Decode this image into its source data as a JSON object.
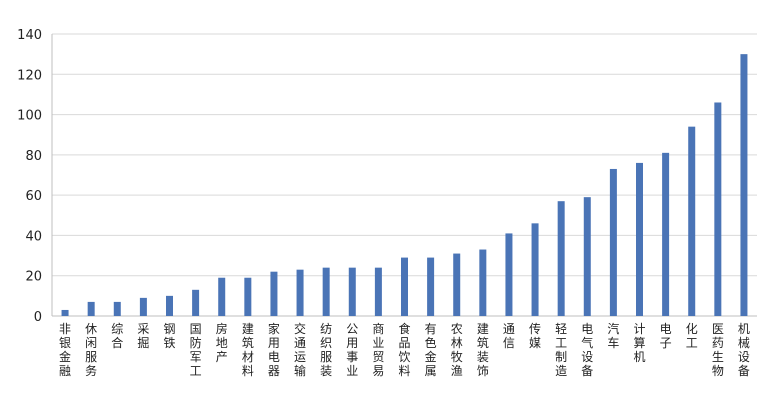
{
  "chart_data": {
    "type": "bar",
    "title": "",
    "xlabel": "",
    "ylabel": "",
    "ylim": [
      0,
      140
    ],
    "yticks": [
      "0",
      "20",
      "40",
      "60",
      "80",
      "100",
      "120",
      "140"
    ],
    "grid": true,
    "bar_color": "#4a74b6",
    "categories": [
      "非银金融",
      "休闲服务",
      "综合",
      "采掘",
      "钢铁",
      "国防军工",
      "房地产",
      "建筑材料",
      "家用电器",
      "交通运输",
      "纺织服装",
      "公用事业",
      "商业贸易",
      "食品饮料",
      "有色金属",
      "农林牧渔",
      "建筑装饰",
      "通信",
      "传媒",
      "轻工制造",
      "电气设备",
      "汽车",
      "计算机",
      "电子",
      "化工",
      "医药生物",
      "机械设备"
    ],
    "values": [
      3,
      7,
      7,
      9,
      10,
      13,
      19,
      19,
      22,
      23,
      24,
      24,
      24,
      29,
      29,
      31,
      33,
      41,
      46,
      57,
      59,
      73,
      76,
      81,
      94,
      106,
      130
    ]
  }
}
